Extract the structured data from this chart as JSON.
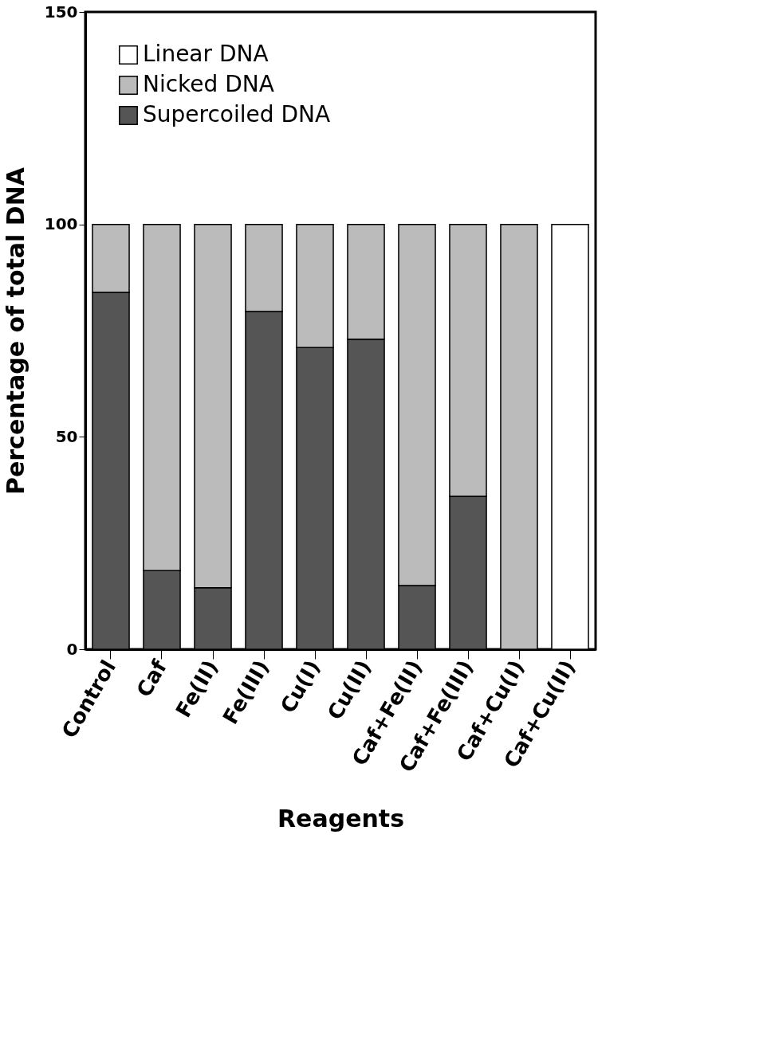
{
  "chart_data": {
    "type": "bar",
    "stacked": true,
    "xlabel": "Reagents",
    "ylabel": "Percentage of total DNA",
    "categories": [
      "Control",
      "Caf",
      "Fe(II)",
      "Fe(III)",
      "Cu(I)",
      "Cu(II)",
      "Caf+Fe(II)",
      "Caf+Fe(III)",
      "Caf+Cu(I)",
      "Caf+Cu(II)"
    ],
    "series": [
      {
        "name": "Supercoiled DNA",
        "color": "#555555",
        "values": [
          84,
          18.5,
          14.5,
          79.5,
          71,
          73,
          15,
          36,
          0,
          0
        ]
      },
      {
        "name": "Nicked DNA",
        "color": "#bbbbbb",
        "values": [
          16,
          81.5,
          85.5,
          20.5,
          29,
          27,
          85,
          64,
          100,
          0
        ]
      },
      {
        "name": "Linear DNA",
        "color": "#ffffff",
        "values": [
          0,
          0,
          0,
          0,
          0,
          0,
          0,
          0,
          0,
          100
        ]
      }
    ],
    "ylim": [
      0,
      150
    ],
    "yticks": [
      0,
      50,
      100,
      150
    ],
    "grid": false,
    "legend": "top left"
  }
}
